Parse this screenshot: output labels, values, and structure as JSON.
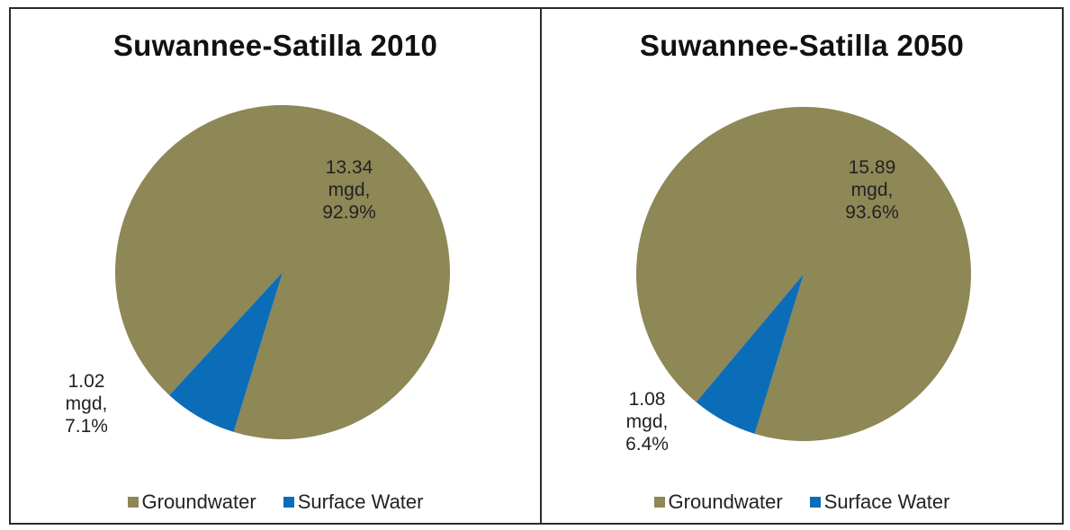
{
  "chart_data": [
    {
      "type": "pie",
      "title": "Suwannee-Satilla 2010",
      "categories": [
        "Groundwater",
        "Surface Water"
      ],
      "values": [
        13.34,
        1.02
      ],
      "percentages": [
        92.9,
        7.1
      ],
      "labels": [
        {
          "line1": "13.34",
          "line2": "mgd,",
          "line3": "92.9%"
        },
        {
          "line1": "1.02",
          "line2": "mgd,",
          "line3": "7.1%"
        }
      ],
      "colors": [
        "#8E8756",
        "#0B6DB8"
      ],
      "legend_position": "bottom"
    },
    {
      "type": "pie",
      "title": "Suwannee-Satilla 2050",
      "categories": [
        "Groundwater",
        "Surface Water"
      ],
      "values": [
        15.89,
        1.08
      ],
      "percentages": [
        93.6,
        6.4
      ],
      "labels": [
        {
          "line1": "15.89",
          "line2": "mgd,",
          "line3": "93.6%"
        },
        {
          "line1": "1.08",
          "line2": "mgd,",
          "line3": "6.4%"
        }
      ],
      "colors": [
        "#8E8756",
        "#0B6DB8"
      ],
      "legend_position": "bottom"
    }
  ]
}
